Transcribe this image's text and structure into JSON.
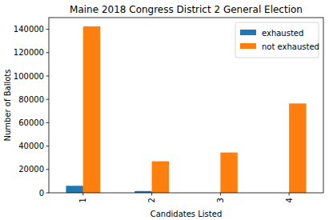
{
  "chart_data": {
    "type": "bar",
    "title": "Maine 2018 Congress District 2 General Election",
    "x_label": "Candidates Listed",
    "y_label": "Number of Ballots",
    "categories": [
      "1",
      "2",
      "3",
      "4"
    ],
    "series": [
      {
        "name": "exhausted",
        "color": "#1f77b4",
        "values": [
          6000,
          1500,
          0,
          0
        ]
      },
      {
        "name": "not exhausted",
        "color": "#ff7f0e",
        "values": [
          142500,
          27000,
          34500,
          76500
        ]
      }
    ],
    "ylim": [
      0,
      150000
    ],
    "yticks": [
      0,
      20000,
      40000,
      60000,
      80000,
      100000,
      120000,
      140000
    ],
    "grid": false,
    "legend": "upper right"
  }
}
